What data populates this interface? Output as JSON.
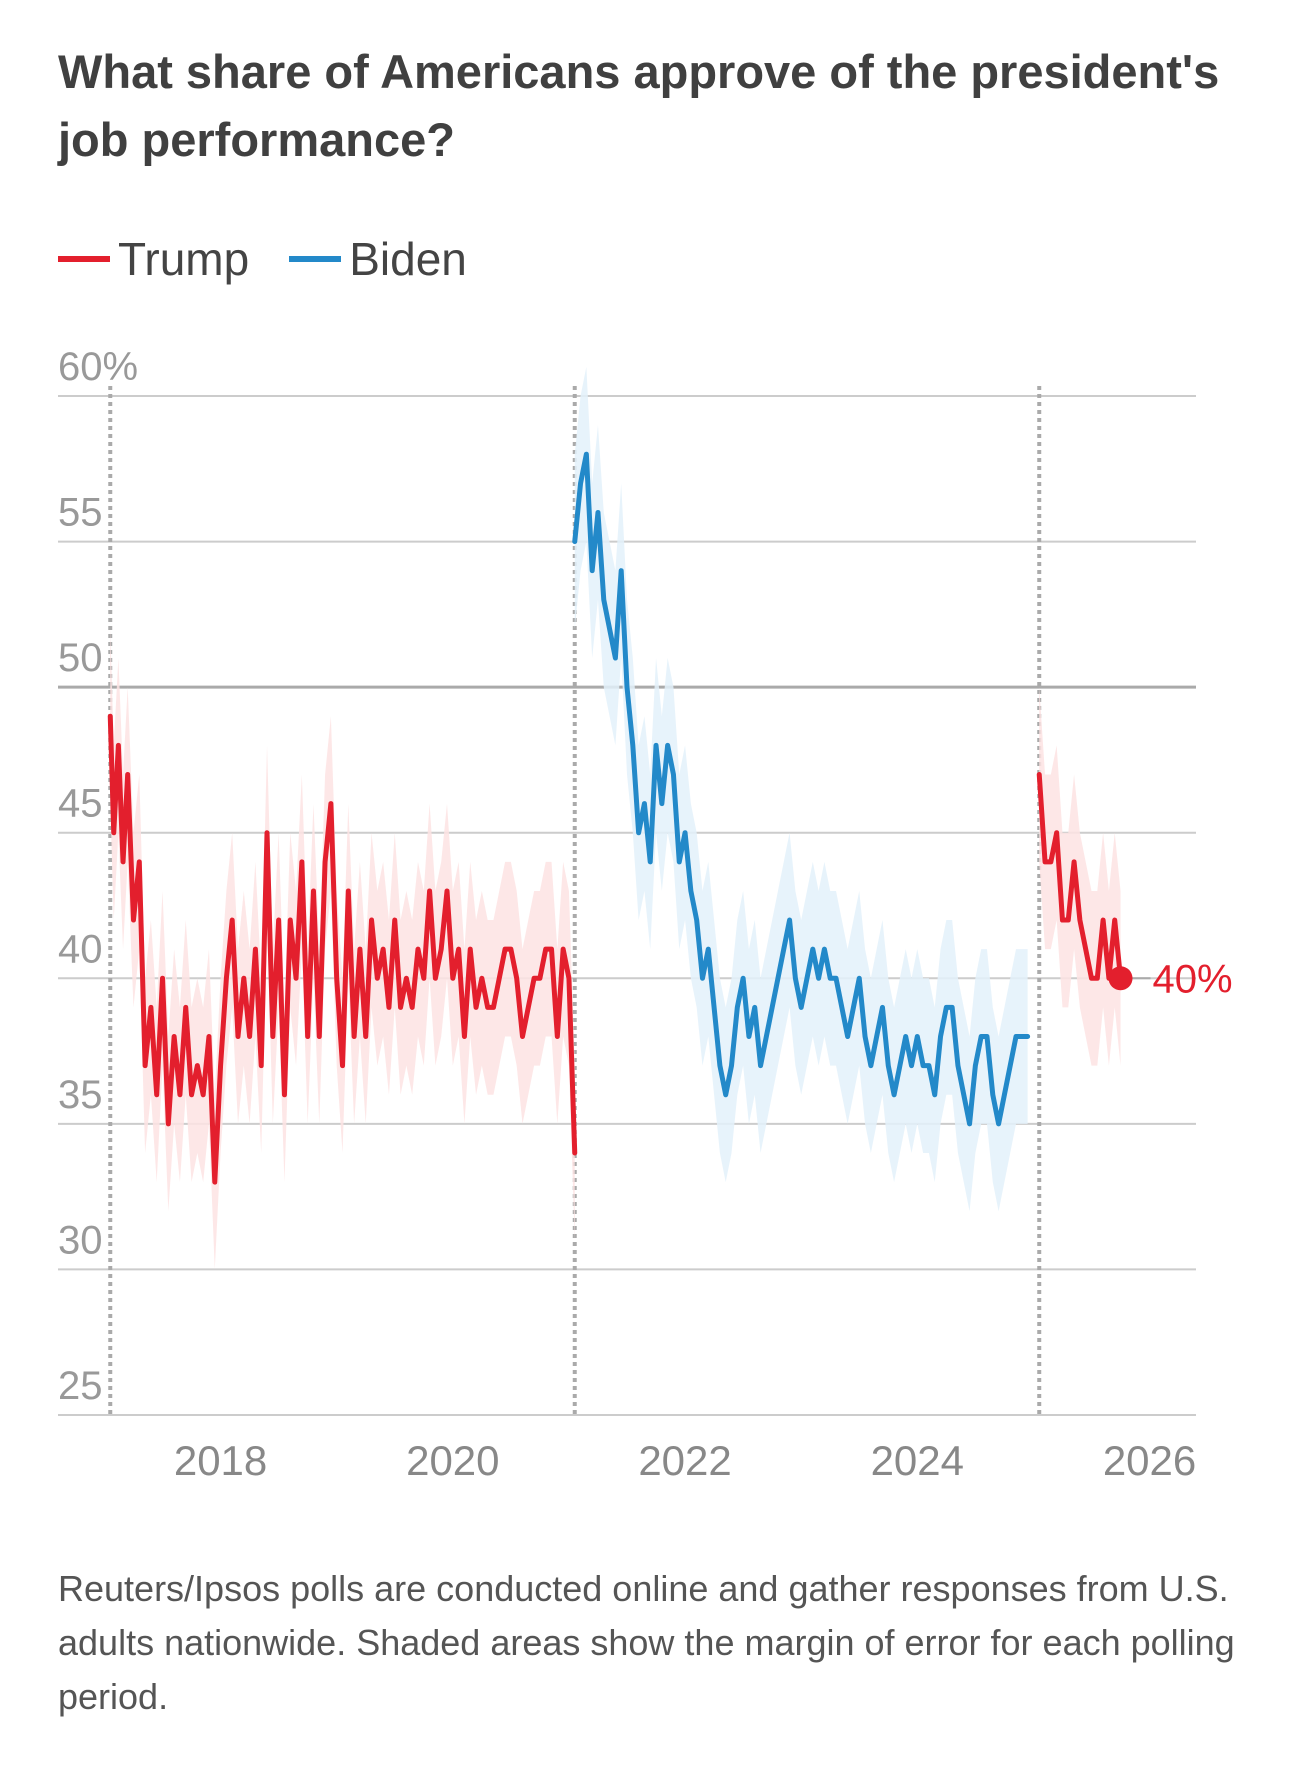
{
  "title": "What share of Americans approve of the president's job performance?",
  "note": "Reuters/Ipsos polls are conducted online and gather responses from U.S. adults nationwide. Shaded areas show the margin of error for each polling period.",
  "colors": {
    "trump": "#e31f2d",
    "biden": "#2389c9",
    "trump_band": "#fde3e3",
    "biden_band": "#e3f1fa",
    "grid": "#cccccc",
    "axis_text": "#999999"
  },
  "chart_data": {
    "type": "line",
    "title": "What share of Americans approve of the president's job performance?",
    "ylabel": "",
    "xlabel": "",
    "ylim": [
      25,
      60
    ],
    "xlim": [
      2016.6,
      2026.4
    ],
    "y_ticks": [
      {
        "value": 60,
        "label": "60%"
      },
      {
        "value": 55,
        "label": "55"
      },
      {
        "value": 50,
        "label": "50"
      },
      {
        "value": 45,
        "label": "45"
      },
      {
        "value": 40,
        "label": "40"
      },
      {
        "value": 35,
        "label": "35"
      },
      {
        "value": 30,
        "label": "30"
      },
      {
        "value": 25,
        "label": "25"
      }
    ],
    "x_ticks": [
      {
        "value": 2018,
        "label": "2018"
      },
      {
        "value": 2020,
        "label": "2020"
      },
      {
        "value": 2022,
        "label": "2022"
      },
      {
        "value": 2024,
        "label": "2024"
      },
      {
        "value": 2026,
        "label": "2026"
      }
    ],
    "inauguration_lines": [
      2017.05,
      2021.05,
      2025.05
    ],
    "margin_of_error": 3,
    "end_label": "40%",
    "series": [
      {
        "name": "Trump",
        "color_key": "trump",
        "x": [
          2017.05,
          2017.08,
          2017.12,
          2017.16,
          2017.2,
          2017.25,
          2017.3,
          2017.35,
          2017.4,
          2017.45,
          2017.5,
          2017.55,
          2017.6,
          2017.65,
          2017.7,
          2017.75,
          2017.8,
          2017.85,
          2017.9,
          2017.95,
          2018.0,
          2018.05,
          2018.1,
          2018.15,
          2018.2,
          2018.25,
          2018.3,
          2018.35,
          2018.4,
          2018.45,
          2018.5,
          2018.55,
          2018.6,
          2018.65,
          2018.7,
          2018.75,
          2018.8,
          2018.85,
          2018.9,
          2018.95,
          2019.0,
          2019.05,
          2019.1,
          2019.15,
          2019.2,
          2019.25,
          2019.3,
          2019.35,
          2019.4,
          2019.45,
          2019.5,
          2019.55,
          2019.6,
          2019.65,
          2019.7,
          2019.75,
          2019.8,
          2019.85,
          2019.9,
          2019.95,
          2020.0,
          2020.05,
          2020.1,
          2020.15,
          2020.2,
          2020.25,
          2020.3,
          2020.35,
          2020.4,
          2020.45,
          2020.5,
          2020.55,
          2020.6,
          2020.65,
          2020.7,
          2020.75,
          2020.8,
          2020.85,
          2020.9,
          2020.95,
          2021.0,
          2021.05
        ],
        "values": [
          49,
          45,
          48,
          44,
          47,
          42,
          44,
          37,
          39,
          36,
          40,
          35,
          38,
          36,
          39,
          36,
          37,
          36,
          38,
          33,
          37,
          40,
          42,
          38,
          40,
          38,
          41,
          37,
          45,
          38,
          42,
          36,
          42,
          40,
          44,
          38,
          43,
          38,
          44,
          46,
          40,
          37,
          43,
          38,
          41,
          38,
          42,
          40,
          41,
          39,
          42,
          39,
          40,
          39,
          41,
          40,
          43,
          40,
          41,
          43,
          40,
          41,
          38,
          41,
          39,
          40,
          39,
          39,
          40,
          41,
          41,
          40,
          38,
          39,
          40,
          40,
          41,
          41,
          38,
          41,
          40,
          34
        ]
      },
      {
        "name": "Biden",
        "color_key": "biden",
        "x": [
          2021.05,
          2021.1,
          2021.15,
          2021.2,
          2021.25,
          2021.3,
          2021.35,
          2021.4,
          2021.45,
          2021.5,
          2021.55,
          2021.6,
          2021.65,
          2021.7,
          2021.75,
          2021.8,
          2021.85,
          2021.9,
          2021.95,
          2022.0,
          2022.05,
          2022.1,
          2022.15,
          2022.2,
          2022.25,
          2022.3,
          2022.35,
          2022.4,
          2022.45,
          2022.5,
          2022.55,
          2022.6,
          2022.65,
          2022.7,
          2022.75,
          2022.8,
          2022.85,
          2022.9,
          2022.95,
          2023.0,
          2023.05,
          2023.1,
          2023.15,
          2023.2,
          2023.25,
          2023.3,
          2023.35,
          2023.4,
          2023.45,
          2023.5,
          2023.55,
          2023.6,
          2023.65,
          2023.7,
          2023.75,
          2023.8,
          2023.85,
          2023.9,
          2023.95,
          2024.0,
          2024.05,
          2024.1,
          2024.15,
          2024.2,
          2024.25,
          2024.3,
          2024.35,
          2024.4,
          2024.45,
          2024.5,
          2024.55,
          2024.6,
          2024.65,
          2024.7,
          2024.75,
          2024.8,
          2024.85,
          2024.9,
          2024.95
        ],
        "values": [
          55,
          57,
          58,
          54,
          56,
          53,
          52,
          51,
          54,
          50,
          48,
          45,
          46,
          44,
          48,
          46,
          48,
          47,
          44,
          45,
          43,
          42,
          40,
          41,
          39,
          37,
          36,
          37,
          39,
          40,
          38,
          39,
          37,
          38,
          39,
          40,
          41,
          42,
          40,
          39,
          40,
          41,
          40,
          41,
          40,
          40,
          39,
          38,
          39,
          40,
          38,
          37,
          38,
          39,
          37,
          36,
          37,
          38,
          37,
          38,
          37,
          37,
          36,
          38,
          39,
          39,
          37,
          36,
          35,
          37,
          38,
          38,
          36,
          35,
          36,
          37,
          38,
          38,
          38
        ]
      }
    ],
    "trump2": {
      "name": "Trump",
      "color_key": "trump",
      "x": [
        2025.05,
        2025.1,
        2025.15,
        2025.2,
        2025.25,
        2025.3,
        2025.35,
        2025.4,
        2025.45,
        2025.5,
        2025.55,
        2025.6,
        2025.65,
        2025.7,
        2025.75
      ],
      "values": [
        47,
        44,
        44,
        45,
        42,
        42,
        44,
        42,
        41,
        40,
        40,
        42,
        40,
        42,
        40
      ]
    }
  }
}
